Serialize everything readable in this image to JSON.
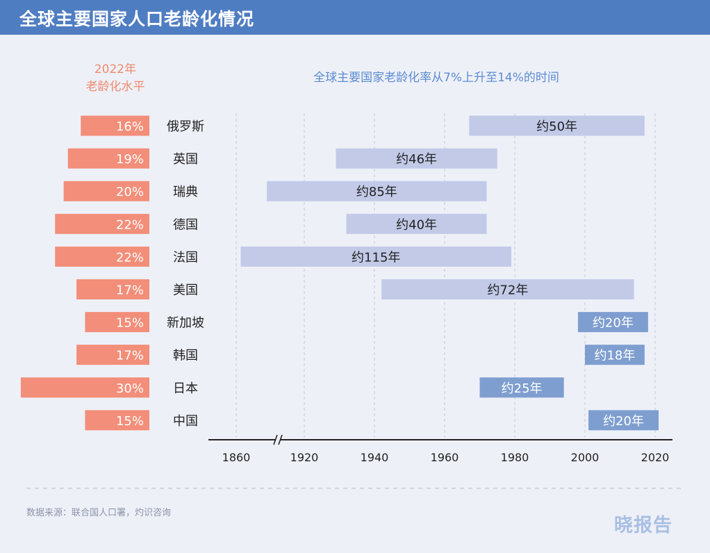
{
  "header": {
    "title": "全球主要国家人口老龄化情况"
  },
  "chart_data": {
    "type": "bar",
    "left_panel": {
      "title_line1": "2022年",
      "title_line2": "老龄化水平",
      "unit": "%"
    },
    "right_panel": {
      "title": "全球主要国家老龄化率从7%上升至14%的时间",
      "x_ticks": [
        1860,
        1920,
        1940,
        1960,
        1980,
        2000,
        2020
      ],
      "axis_break_between": [
        1860,
        1920
      ]
    },
    "countries": [
      {
        "name": "俄罗斯",
        "aging_pct": 16,
        "start": 1967,
        "end": 2017,
        "duration_label": "约50年",
        "style": "light"
      },
      {
        "name": "英国",
        "aging_pct": 19,
        "start": 1929,
        "end": 1975,
        "duration_label": "约46年",
        "style": "light"
      },
      {
        "name": "瑞典",
        "aging_pct": 20,
        "start": 1887,
        "end": 1972,
        "duration_label": "约85年",
        "style": "light"
      },
      {
        "name": "德国",
        "aging_pct": 22,
        "start": 1932,
        "end": 1972,
        "duration_label": "约40年",
        "style": "light"
      },
      {
        "name": "法国",
        "aging_pct": 22,
        "start": 1864,
        "end": 1979,
        "duration_label": "约115年",
        "style": "light"
      },
      {
        "name": "美国",
        "aging_pct": 17,
        "start": 1942,
        "end": 2014,
        "duration_label": "约72年",
        "style": "light"
      },
      {
        "name": "新加坡",
        "aging_pct": 15,
        "start": 1998,
        "end": 2018,
        "duration_label": "约20年",
        "style": "dark"
      },
      {
        "name": "韩国",
        "aging_pct": 17,
        "start": 2000,
        "end": 2017,
        "duration_label": "约18年",
        "style": "dark"
      },
      {
        "name": "日本",
        "aging_pct": 30,
        "start": 1970,
        "end": 1994,
        "duration_label": "约25年",
        "style": "dark"
      },
      {
        "name": "中国",
        "aging_pct": 15,
        "start": 2001,
        "end": 2021,
        "duration_label": "约20年",
        "style": "dark"
      }
    ]
  },
  "colors": {
    "header_bg": "#4f7dc2",
    "pct_bar": "#f28e79",
    "light_bar": "#c2cae8",
    "dark_bar": "#7f9ed0",
    "left_title": "#ef8a6d",
    "right_title": "#5b8ccf"
  },
  "footer": {
    "source": "数据来源：联合国人口署，灼识咨询",
    "logo": "晓报告"
  }
}
